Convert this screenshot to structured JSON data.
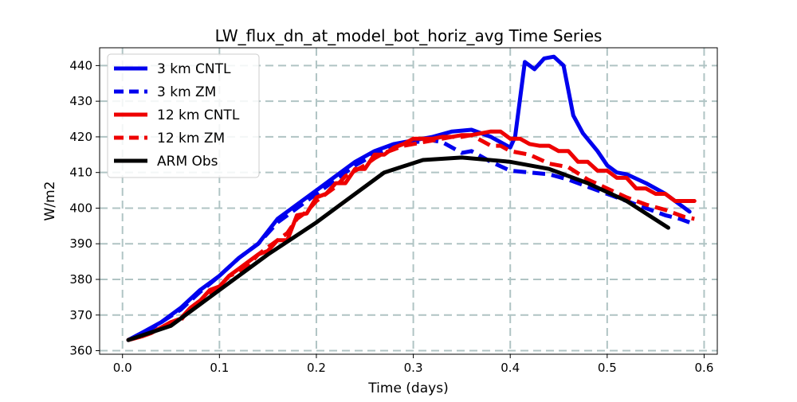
{
  "chart_data": {
    "type": "line",
    "title": "LW_flux_dn_at_model_bot_horiz_avg Time Series",
    "xlabel": "Time (days)",
    "ylabel": "W/m2",
    "xlim": [
      -0.0236,
      0.6136
    ],
    "ylim": [
      359.0,
      445.0
    ],
    "xticks": [
      0.0,
      0.1,
      0.2,
      0.3,
      0.4,
      0.5,
      0.6
    ],
    "xtick_labels": [
      "0.0",
      "0.1",
      "0.2",
      "0.3",
      "0.4",
      "0.5",
      "0.6"
    ],
    "yticks": [
      360,
      370,
      380,
      390,
      400,
      410,
      420,
      430,
      440
    ],
    "ytick_labels": [
      "360",
      "370",
      "380",
      "390",
      "400",
      "410",
      "420",
      "430",
      "440"
    ],
    "grid": true,
    "legend_position": "top-left",
    "series": [
      {
        "name": "3 km CNTL",
        "color": "#0000ee",
        "dash": "solid",
        "x": [
          0.006,
          0.02,
          0.04,
          0.06,
          0.08,
          0.1,
          0.12,
          0.14,
          0.16,
          0.18,
          0.2,
          0.22,
          0.24,
          0.26,
          0.28,
          0.3,
          0.32,
          0.34,
          0.36,
          0.38,
          0.4,
          0.405,
          0.415,
          0.425,
          0.435,
          0.445,
          0.455,
          0.465,
          0.475,
          0.49,
          0.5,
          0.51,
          0.52,
          0.54,
          0.56,
          0.575,
          0.585
        ],
        "y": [
          363,
          365,
          368,
          372,
          377,
          381,
          386,
          390,
          397,
          401,
          405,
          409,
          413,
          416,
          418,
          419,
          420,
          421.5,
          422,
          420,
          417,
          420,
          441,
          439,
          442,
          442.5,
          440,
          426,
          421,
          416,
          412,
          410,
          409.5,
          407,
          404,
          401,
          399
        ]
      },
      {
        "name": "3 km ZM",
        "color": "#0000ee",
        "dash": "dashed",
        "x": [
          0.006,
          0.02,
          0.04,
          0.06,
          0.08,
          0.1,
          0.12,
          0.14,
          0.16,
          0.18,
          0.2,
          0.22,
          0.24,
          0.26,
          0.28,
          0.3,
          0.32,
          0.33,
          0.34,
          0.35,
          0.36,
          0.38,
          0.4,
          0.42,
          0.44,
          0.46,
          0.48,
          0.5,
          0.52,
          0.54,
          0.56,
          0.575,
          0.585
        ],
        "y": [
          363,
          364.5,
          368,
          371.5,
          376.5,
          381,
          386,
          390,
          396,
          400,
          404,
          408,
          412,
          415,
          417.5,
          418.5,
          419,
          418.5,
          417,
          415.5,
          416,
          413,
          410.5,
          410,
          409.5,
          408,
          406,
          404,
          402,
          400,
          398,
          397,
          396
        ]
      },
      {
        "name": "12 km CNTL",
        "color": "#ee0000",
        "dash": "solid",
        "x": [
          0.006,
          0.02,
          0.03,
          0.05,
          0.06,
          0.07,
          0.08,
          0.09,
          0.1,
          0.11,
          0.12,
          0.13,
          0.14,
          0.15,
          0.16,
          0.17,
          0.18,
          0.19,
          0.2,
          0.21,
          0.22,
          0.23,
          0.24,
          0.25,
          0.26,
          0.27,
          0.28,
          0.29,
          0.3,
          0.31,
          0.32,
          0.33,
          0.34,
          0.35,
          0.36,
          0.37,
          0.38,
          0.39,
          0.4,
          0.41,
          0.42,
          0.43,
          0.44,
          0.45,
          0.46,
          0.47,
          0.48,
          0.49,
          0.5,
          0.51,
          0.52,
          0.53,
          0.54,
          0.55,
          0.56,
          0.57,
          0.58,
          0.59
        ],
        "y": [
          363,
          364,
          365,
          368,
          369,
          372,
          374,
          377,
          378,
          381,
          383,
          385,
          387,
          388,
          391,
          391,
          398,
          398.5,
          403,
          404,
          407,
          407,
          411,
          411,
          415,
          415,
          417,
          418,
          419.5,
          419.5,
          419.5,
          420,
          420,
          420.5,
          420.5,
          421,
          421.5,
          421.5,
          419.5,
          419.5,
          418,
          417.5,
          417.5,
          416,
          416,
          413,
          413,
          410.5,
          410.5,
          408.5,
          408.5,
          405.5,
          405.5,
          404,
          404,
          402,
          402,
          402
        ]
      },
      {
        "name": "12 km ZM",
        "color": "#ee0000",
        "dash": "dashed",
        "x": [
          0.006,
          0.02,
          0.03,
          0.05,
          0.06,
          0.07,
          0.08,
          0.09,
          0.1,
          0.11,
          0.12,
          0.13,
          0.14,
          0.15,
          0.16,
          0.17,
          0.18,
          0.19,
          0.2,
          0.21,
          0.22,
          0.23,
          0.24,
          0.25,
          0.26,
          0.27,
          0.28,
          0.29,
          0.3,
          0.31,
          0.32,
          0.33,
          0.34,
          0.35,
          0.36,
          0.37,
          0.38,
          0.39,
          0.4,
          0.42,
          0.44,
          0.46,
          0.48,
          0.5,
          0.52,
          0.54,
          0.56,
          0.57,
          0.58,
          0.59
        ],
        "y": [
          363,
          364,
          365,
          368,
          368.5,
          372,
          374,
          376,
          378,
          381,
          382,
          384,
          387,
          389,
          391,
          393,
          397,
          399,
          402,
          404,
          406,
          409,
          410.5,
          412,
          414,
          415.5,
          416.5,
          417.5,
          418,
          418.5,
          419,
          419.5,
          420,
          420,
          420.5,
          419,
          417.5,
          417.5,
          416,
          415,
          412.5,
          411.5,
          408,
          405.5,
          403,
          401,
          399.5,
          398.5,
          397.5,
          397
        ]
      },
      {
        "name": "ARM Obs",
        "color": "#000000",
        "dash": "solid",
        "x": [
          0.006,
          0.05,
          0.1,
          0.15,
          0.2,
          0.23,
          0.27,
          0.31,
          0.35,
          0.4,
          0.44,
          0.48,
          0.52,
          0.563
        ],
        "y": [
          363,
          367,
          377,
          387,
          396,
          402,
          410,
          413.5,
          414.2,
          413,
          411,
          407,
          402,
          394.5
        ]
      }
    ]
  }
}
